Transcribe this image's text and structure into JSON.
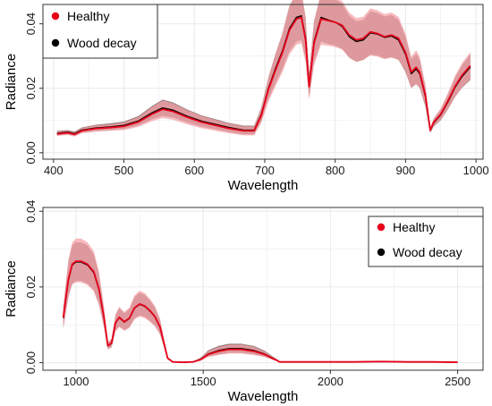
{
  "colors": {
    "healthy_line": "#e8001a",
    "healthy_band": "#f4a3a8",
    "decay_line": "#000000",
    "decay_band": "#6f4a4a",
    "grid": "#ebebeb",
    "frame": "#333333"
  },
  "chart_data": [
    {
      "type": "line",
      "xlabel": "Wavelength",
      "ylabel": "Radiance",
      "xlim": [
        385,
        1010
      ],
      "ylim": [
        -0.002,
        0.046
      ],
      "xticks": [
        400,
        500,
        600,
        700,
        800,
        900,
        1000
      ],
      "xtick_labels": [
        "400",
        "500",
        "600",
        "700",
        "800",
        "900",
        "1000"
      ],
      "yticks": [
        0.0,
        0.02,
        0.04
      ],
      "ytick_labels": [
        "0.00",
        "0.02",
        "0.04"
      ],
      "grid": true,
      "legend_position": "top-left",
      "x": [
        405,
        420,
        430,
        440,
        460,
        480,
        500,
        520,
        540,
        555,
        570,
        590,
        610,
        630,
        650,
        670,
        685,
        695,
        705,
        715,
        725,
        735,
        745,
        752,
        758,
        763,
        770,
        780,
        790,
        800,
        810,
        820,
        830,
        840,
        850,
        860,
        870,
        880,
        890,
        900,
        908,
        915,
        920,
        928,
        935,
        940,
        950,
        960,
        970,
        980,
        992
      ],
      "series": [
        {
          "name": "Healthy",
          "values": [
            0.0058,
            0.0062,
            0.0057,
            0.0068,
            0.0075,
            0.0078,
            0.0082,
            0.0095,
            0.012,
            0.0135,
            0.0128,
            0.011,
            0.0095,
            0.0085,
            0.0075,
            0.0068,
            0.0068,
            0.0115,
            0.0195,
            0.0255,
            0.031,
            0.038,
            0.0415,
            0.042,
            0.035,
            0.0205,
            0.034,
            0.0415,
            0.041,
            0.0405,
            0.0395,
            0.0365,
            0.035,
            0.0355,
            0.0375,
            0.037,
            0.036,
            0.0365,
            0.0355,
            0.031,
            0.025,
            0.0265,
            0.025,
            0.018,
            0.007,
            0.0095,
            0.012,
            0.016,
            0.0205,
            0.024,
            0.027
          ],
          "lower": [
            0.0052,
            0.0055,
            0.005,
            0.006,
            0.0065,
            0.0068,
            0.007,
            0.008,
            0.0098,
            0.0108,
            0.0102,
            0.0088,
            0.0076,
            0.0068,
            0.006,
            0.0054,
            0.0054,
            0.0092,
            0.0158,
            0.0205,
            0.025,
            0.0305,
            0.0335,
            0.034,
            0.028,
            0.0165,
            0.0272,
            0.0335,
            0.0332,
            0.0328,
            0.032,
            0.0295,
            0.0282,
            0.0288,
            0.0302,
            0.0298,
            0.029,
            0.0295,
            0.0288,
            0.0252,
            0.0202,
            0.0212,
            0.0202,
            0.0148,
            0.0062,
            0.0082,
            0.0102,
            0.0135,
            0.0172,
            0.0202,
            0.0228
          ],
          "upper": [
            0.0066,
            0.0068,
            0.0064,
            0.0076,
            0.0085,
            0.0088,
            0.0094,
            0.011,
            0.0142,
            0.0162,
            0.0153,
            0.0132,
            0.0114,
            0.0102,
            0.009,
            0.0082,
            0.0082,
            0.0138,
            0.0232,
            0.0305,
            0.037,
            0.0455,
            0.0495,
            0.05,
            0.042,
            0.0245,
            0.0408,
            0.0495,
            0.0488,
            0.0482,
            0.047,
            0.0435,
            0.0418,
            0.0422,
            0.0448,
            0.0442,
            0.043,
            0.0435,
            0.0422,
            0.0368,
            0.0298,
            0.0318,
            0.0298,
            0.0212,
            0.0078,
            0.0108,
            0.0138,
            0.0185,
            0.0238,
            0.0278,
            0.0312
          ]
        },
        {
          "name": "Wood decay",
          "values": [
            0.006,
            0.0064,
            0.0059,
            0.007,
            0.0077,
            0.008,
            0.0085,
            0.0098,
            0.0124,
            0.0139,
            0.0132,
            0.0113,
            0.0098,
            0.0088,
            0.0078,
            0.007,
            0.007,
            0.0118,
            0.0198,
            0.026,
            0.0315,
            0.0385,
            0.042,
            0.0425,
            0.0355,
            0.0208,
            0.0345,
            0.042,
            0.0412,
            0.0405,
            0.0392,
            0.036,
            0.0345,
            0.035,
            0.0372,
            0.0368,
            0.0358,
            0.0362,
            0.035,
            0.0305,
            0.0245,
            0.026,
            0.0245,
            0.0176,
            0.0069,
            0.0093,
            0.0118,
            0.0157,
            0.0202,
            0.0236,
            0.0266
          ],
          "lower": [
            0.0054,
            0.0057,
            0.0053,
            0.0062,
            0.0068,
            0.007,
            0.0074,
            0.0084,
            0.0104,
            0.0115,
            0.0109,
            0.0094,
            0.0081,
            0.0073,
            0.0064,
            0.0057,
            0.0057,
            0.0097,
            0.0165,
            0.0215,
            0.026,
            0.0315,
            0.0345,
            0.035,
            0.029,
            0.017,
            0.0282,
            0.0345,
            0.0338,
            0.0333,
            0.0322,
            0.0295,
            0.0282,
            0.0288,
            0.0305,
            0.0302,
            0.0293,
            0.0297,
            0.0288,
            0.025,
            0.0201,
            0.0213,
            0.0201,
            0.0144,
            0.0061,
            0.0081,
            0.0101,
            0.0134,
            0.0172,
            0.0201,
            0.0226
          ],
          "upper": [
            0.0068,
            0.007,
            0.0066,
            0.0078,
            0.0087,
            0.0091,
            0.0097,
            0.0113,
            0.0145,
            0.0165,
            0.0156,
            0.0134,
            0.0116,
            0.0104,
            0.0092,
            0.0084,
            0.0084,
            0.014,
            0.0232,
            0.0305,
            0.037,
            0.0455,
            0.0495,
            0.05,
            0.042,
            0.0246,
            0.0408,
            0.0495,
            0.0486,
            0.0477,
            0.0462,
            0.0425,
            0.0408,
            0.0412,
            0.0438,
            0.0434,
            0.0423,
            0.0427,
            0.0412,
            0.036,
            0.0289,
            0.0307,
            0.0289,
            0.0208,
            0.0077,
            0.0105,
            0.0135,
            0.018,
            0.0232,
            0.0271,
            0.0306
          ]
        }
      ]
    },
    {
      "type": "line",
      "xlabel": "Wavelength",
      "ylabel": "Radiance",
      "xlim": [
        870,
        2600
      ],
      "ylim": [
        -0.002,
        0.041
      ],
      "xticks": [
        1000,
        1500,
        2000,
        2500
      ],
      "xtick_labels": [
        "1000",
        "1500",
        "2000",
        "2500"
      ],
      "yticks": [
        0.0,
        0.02,
        0.04
      ],
      "ytick_labels": [
        "0.00",
        "0.02",
        "0.04"
      ],
      "grid": true,
      "legend_position": "top-right",
      "x": [
        950,
        970,
        985,
        1000,
        1020,
        1045,
        1070,
        1090,
        1110,
        1125,
        1140,
        1155,
        1170,
        1190,
        1210,
        1230,
        1250,
        1270,
        1290,
        1310,
        1330,
        1350,
        1360,
        1380,
        1420,
        1460,
        1490,
        1520,
        1560,
        1600,
        1650,
        1700,
        1740,
        1770,
        1790,
        1800,
        1850,
        1900,
        1950,
        2000,
        2100,
        2200,
        2300,
        2400,
        2500
      ],
      "series": [
        {
          "name": "Healthy",
          "values": [
            0.012,
            0.022,
            0.026,
            0.0268,
            0.0268,
            0.026,
            0.024,
            0.0195,
            0.012,
            0.0045,
            0.0052,
            0.0105,
            0.012,
            0.0108,
            0.0118,
            0.0145,
            0.0155,
            0.015,
            0.0138,
            0.0122,
            0.0095,
            0.004,
            0.0012,
            0.0002,
            0.0001,
            0.0002,
            0.0008,
            0.0022,
            0.003,
            0.0035,
            0.0035,
            0.003,
            0.0022,
            0.0012,
            0.0006,
            0.0002,
            0.0002,
            0.0002,
            0.0002,
            0.0002,
            0.0002,
            0.0003,
            0.0002,
            0.0002,
            0.0001
          ],
          "lower": [
            0.009,
            0.0172,
            0.0206,
            0.0212,
            0.0212,
            0.0205,
            0.0188,
            0.0152,
            0.0093,
            0.0035,
            0.004,
            0.0082,
            0.0094,
            0.0084,
            0.0092,
            0.0114,
            0.0122,
            0.0118,
            0.0108,
            0.0096,
            0.0074,
            0.0031,
            0.0009,
            0.0001,
            0.0,
            0.0001,
            0.0005,
            0.0015,
            0.002,
            0.0024,
            0.0024,
            0.002,
            0.0015,
            0.0008,
            0.0004,
            0.0001,
            0.0001,
            0.0001,
            0.0001,
            0.0001,
            0.0001,
            0.0002,
            0.0001,
            0.0001,
            0.0
          ],
          "upper": [
            0.015,
            0.0272,
            0.0318,
            0.0328,
            0.0328,
            0.0318,
            0.0294,
            0.0242,
            0.0148,
            0.0055,
            0.0064,
            0.0128,
            0.0148,
            0.0134,
            0.0146,
            0.0178,
            0.019,
            0.0184,
            0.0169,
            0.015,
            0.0117,
            0.005,
            0.0016,
            0.0003,
            0.0002,
            0.0003,
            0.0012,
            0.0031,
            0.0041,
            0.0047,
            0.0048,
            0.0042,
            0.003,
            0.0017,
            0.0009,
            0.0003,
            0.0003,
            0.0003,
            0.0003,
            0.0003,
            0.0003,
            0.0004,
            0.0003,
            0.0003,
            0.0002
          ]
        },
        {
          "name": "Wood decay",
          "values": [
            0.0118,
            0.0218,
            0.0258,
            0.0266,
            0.0266,
            0.0258,
            0.0238,
            0.0193,
            0.0118,
            0.0044,
            0.0051,
            0.0104,
            0.0119,
            0.0107,
            0.0117,
            0.0144,
            0.0154,
            0.0149,
            0.0137,
            0.0121,
            0.0094,
            0.0039,
            0.0012,
            0.0002,
            0.0001,
            0.0002,
            0.0009,
            0.0023,
            0.0032,
            0.0037,
            0.0037,
            0.0032,
            0.0023,
            0.0013,
            0.0006,
            0.0002,
            0.0002,
            0.0002,
            0.0002,
            0.0002,
            0.0002,
            0.0003,
            0.0002,
            0.0002,
            0.0001
          ],
          "lower": [
            0.0092,
            0.0175,
            0.0209,
            0.0216,
            0.0216,
            0.0209,
            0.0192,
            0.0155,
            0.0095,
            0.0036,
            0.0041,
            0.0084,
            0.0096,
            0.0086,
            0.0094,
            0.0117,
            0.0125,
            0.0121,
            0.0111,
            0.0098,
            0.0076,
            0.0032,
            0.0009,
            0.0001,
            0.0,
            0.0001,
            0.0006,
            0.0016,
            0.0022,
            0.0026,
            0.0026,
            0.0022,
            0.0016,
            0.0009,
            0.0004,
            0.0001,
            0.0001,
            0.0001,
            0.0001,
            0.0001,
            0.0001,
            0.0002,
            0.0001,
            0.0001,
            0.0
          ],
          "upper": [
            0.0146,
            0.0265,
            0.031,
            0.0318,
            0.0318,
            0.031,
            0.0286,
            0.0234,
            0.0142,
            0.0053,
            0.0062,
            0.0125,
            0.0144,
            0.013,
            0.0142,
            0.0173,
            0.0185,
            0.0179,
            0.0165,
            0.0146,
            0.0114,
            0.0048,
            0.0015,
            0.0003,
            0.0002,
            0.0003,
            0.0013,
            0.0033,
            0.0044,
            0.005,
            0.005,
            0.0044,
            0.0032,
            0.0018,
            0.0009,
            0.0003,
            0.0003,
            0.0003,
            0.0003,
            0.0003,
            0.0003,
            0.0004,
            0.0003,
            0.0003,
            0.0002
          ]
        }
      ]
    }
  ]
}
